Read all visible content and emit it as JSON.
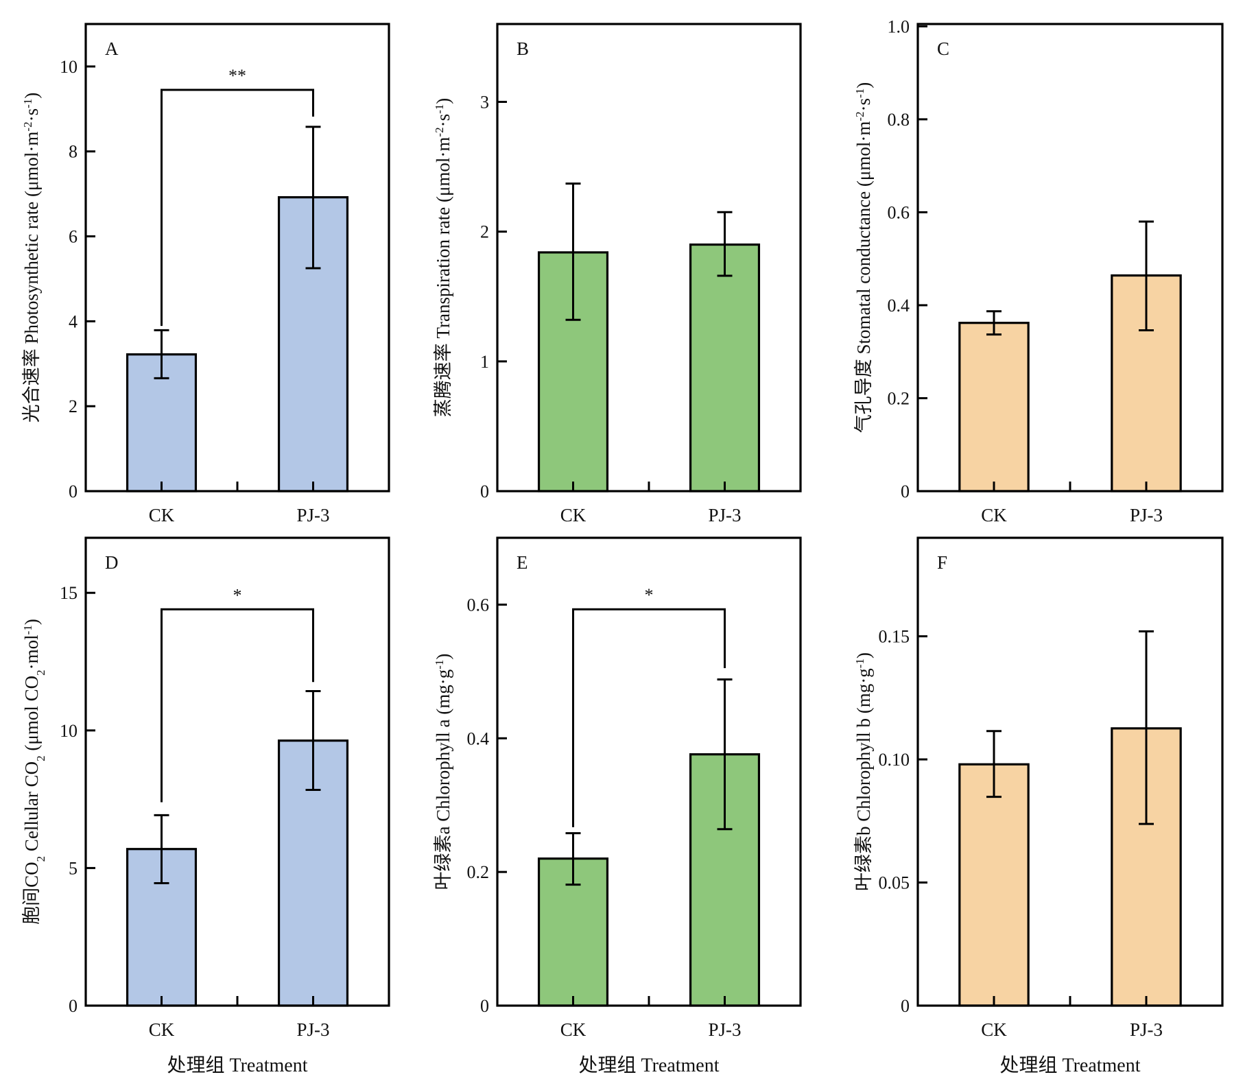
{
  "figure": {
    "categories": [
      "CK",
      "PJ-3"
    ],
    "xlabel": "处理组 Treatment",
    "colors": {
      "blue": "#b3c7e6",
      "green": "#8ec77b",
      "orange": "#f7d3a3",
      "stroke": "#000000"
    }
  },
  "chart_data": [
    {
      "panel": "A",
      "type": "bar",
      "categories": [
        "CK",
        "PJ-3"
      ],
      "values": [
        3.22,
        6.92
      ],
      "error_low": [
        2.66,
        5.25
      ],
      "error_high": [
        3.79,
        8.58
      ],
      "ylabel_parts": [
        [
          "光合速率 Photosynthetic rate (μmol·m",
          ""
        ],
        [
          "-2",
          "sup"
        ],
        [
          "·s",
          ""
        ],
        [
          "-1",
          "sup"
        ],
        [
          ")",
          ""
        ]
      ],
      "ylabel": "光合速率 Photosynthetic rate (μmol·m-2·s-1)",
      "xlabel": "",
      "ylim": [
        0,
        11
      ],
      "yticks": [
        0,
        2,
        4,
        6,
        8,
        10
      ],
      "ytick_labels": [
        "0",
        "2",
        "4",
        "6",
        "8",
        "10"
      ],
      "color": "blue",
      "significance": {
        "label": "**",
        "level": 9.45,
        "left_end": 3.89,
        "right_end": 8.82
      }
    },
    {
      "panel": "B",
      "type": "bar",
      "categories": [
        "CK",
        "PJ-3"
      ],
      "values": [
        1.84,
        1.9
      ],
      "error_low": [
        1.32,
        1.66
      ],
      "error_high": [
        2.37,
        2.15
      ],
      "ylabel_parts": [
        [
          "蒸腾速率 Transpiration rate (μmol·m",
          ""
        ],
        [
          "-2",
          "sup"
        ],
        [
          "·s",
          ""
        ],
        [
          "-1",
          "sup"
        ],
        [
          ")",
          ""
        ]
      ],
      "ylabel": "蒸腾速率 Transpiration rate (μmol·m-2·s-1)",
      "xlabel": "",
      "ylim": [
        0,
        3.6
      ],
      "yticks": [
        0,
        1,
        2,
        3
      ],
      "ytick_labels": [
        "0",
        "1",
        "2",
        "3"
      ],
      "color": "green",
      "significance": null
    },
    {
      "panel": "C",
      "type": "bar",
      "categories": [
        "CK",
        "PJ-3"
      ],
      "values": [
        0.362,
        0.464
      ],
      "error_low": [
        0.337,
        0.346
      ],
      "error_high": [
        0.387,
        0.58
      ],
      "ylabel_parts": [
        [
          "气孔导度 Stomatal conductance (μmol·m",
          ""
        ],
        [
          "-2",
          "sup"
        ],
        [
          "·s",
          ""
        ],
        [
          "-1",
          "sup"
        ],
        [
          ")",
          ""
        ]
      ],
      "ylabel": "气孔导度 Stomatal conductance (μmol·m-2·s-1)",
      "xlabel": "",
      "ylim": [
        0,
        1.005
      ],
      "yticks": [
        0,
        0.2,
        0.4,
        0.6,
        0.8,
        1.0
      ],
      "ytick_labels": [
        "0",
        "0.2",
        "0.4",
        "0.6",
        "0.8",
        "1.0"
      ],
      "color": "orange",
      "significance": null
    },
    {
      "panel": "D",
      "type": "bar",
      "categories": [
        "CK",
        "PJ-3"
      ],
      "values": [
        5.69,
        9.63
      ],
      "error_low": [
        4.45,
        7.84
      ],
      "error_high": [
        6.92,
        11.43
      ],
      "ylabel_parts": [
        [
          "胞间CO",
          ""
        ],
        [
          "2",
          "sub"
        ],
        [
          " Cellular CO",
          ""
        ],
        [
          "2",
          "sub"
        ],
        [
          " (μmol CO",
          ""
        ],
        [
          "2",
          "sub"
        ],
        [
          "·mol",
          ""
        ],
        [
          "-1",
          "sup"
        ],
        [
          ")",
          ""
        ]
      ],
      "ylabel": "胞间CO2 Cellular CO2 (μmol CO2·mol-1)",
      "xlabel": "处理组 Treatment",
      "ylim": [
        0,
        17
      ],
      "yticks": [
        0,
        5,
        10,
        15
      ],
      "ytick_labels": [
        "0",
        "5",
        "10",
        "15"
      ],
      "color": "blue",
      "significance": {
        "label": "*",
        "level": 14.4,
        "left_end": 7.39,
        "right_end": 11.76
      }
    },
    {
      "panel": "E",
      "type": "bar",
      "categories": [
        "CK",
        "PJ-3"
      ],
      "values": [
        0.22,
        0.376
      ],
      "error_low": [
        0.181,
        0.264
      ],
      "error_high": [
        0.258,
        0.488
      ],
      "ylabel_parts": [
        [
          "叶绿素a Chlorophyll a (mg·g",
          ""
        ],
        [
          "-1",
          "sup"
        ],
        [
          ")",
          ""
        ]
      ],
      "ylabel": "叶绿素a Chlorophyll a (mg·g-1)",
      "xlabel": "处理组 Treatment",
      "ylim": [
        0,
        0.7
      ],
      "yticks": [
        0,
        0.2,
        0.4,
        0.6
      ],
      "ytick_labels": [
        "0",
        "0.2",
        "0.4",
        "0.6"
      ],
      "color": "green",
      "significance": {
        "label": "*",
        "level": 0.593,
        "left_end": 0.267,
        "right_end": 0.505
      }
    },
    {
      "panel": "F",
      "type": "bar",
      "categories": [
        "CK",
        "PJ-3"
      ],
      "values": [
        0.098,
        0.1126
      ],
      "error_low": [
        0.0848,
        0.0738
      ],
      "error_high": [
        0.1115,
        0.152
      ],
      "ylabel_parts": [
        [
          "叶绿素b Chlorophyll b (mg·g",
          ""
        ],
        [
          "-1",
          "sup"
        ],
        [
          ")",
          ""
        ]
      ],
      "ylabel": "叶绿素b Chlorophyll b (mg·g-1)",
      "xlabel": "处理组 Treatment",
      "ylim": [
        0,
        0.19
      ],
      "yticks": [
        0,
        0.05,
        0.1,
        0.15
      ],
      "ytick_labels": [
        "0",
        "0.05",
        "0.10",
        "0.15"
      ],
      "color": "orange",
      "significance": null
    }
  ]
}
